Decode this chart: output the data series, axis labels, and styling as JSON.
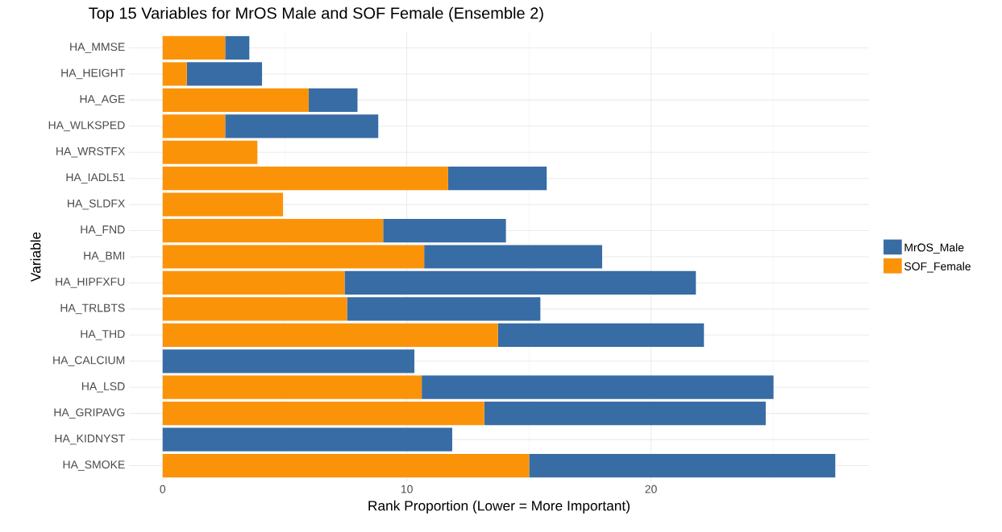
{
  "chart_data": {
    "type": "bar",
    "orientation": "horizontal",
    "stacked": true,
    "title": "Top 15 Variables for MrOS Male and SOF Female (Ensemble 2)",
    "xlabel": "Rank Proportion (Lower = More Important)",
    "ylabel": "Variable",
    "categories": [
      "HA_MMSE",
      "HA_HEIGHT",
      "HA_AGE",
      "HA_WLKSPED",
      "HA_WRSTFX",
      "HA_IADL51",
      "HA_SLDFX",
      "HA_FND",
      "HA_BMI",
      "HA_HIPFXFU",
      "HA_TRLBTS",
      "HA_THD",
      "HA_CALCIUM",
      "HA_LSD",
      "HA_GRIPAVG",
      "HA_KIDNYST",
      "HA_SMOKE"
    ],
    "series": [
      {
        "name": "SOF_Female",
        "color": "#fb9309",
        "values": [
          2.56,
          0.99,
          5.98,
          2.56,
          3.88,
          11.69,
          4.93,
          9.03,
          10.71,
          7.45,
          7.55,
          13.73,
          0,
          10.61,
          13.17,
          0,
          15.01
        ]
      },
      {
        "name": "MrOS_Male",
        "color": "#386ca5",
        "values": [
          0.99,
          3.08,
          2.0,
          6.27,
          0,
          4.04,
          0,
          5.03,
          7.29,
          14.39,
          7.92,
          8.44,
          10.31,
          14.41,
          11.53,
          11.86,
          12.54
        ]
      }
    ],
    "xlim": [
      -1.38,
      28.93
    ],
    "xticks": [
      0,
      {
        "value": 5,
        "label": null
      },
      10,
      {
        "value": 15,
        "label": null
      },
      20,
      {
        "value": 25,
        "label": null
      }
    ],
    "grid": true,
    "legend": "right"
  }
}
